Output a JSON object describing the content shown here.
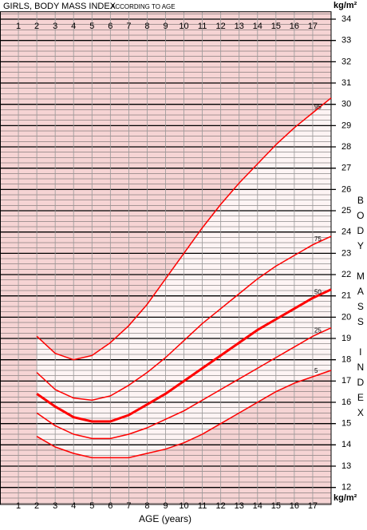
{
  "chart_data": {
    "type": "line",
    "title": "GIRLS, BODY MASS INDEX",
    "subtitle": "ACCORDING TO AGE",
    "x_label": "AGE (years)",
    "y_label": "BODY MASS INDEX",
    "y_unit": "kg/m²",
    "x": [
      2,
      3,
      4,
      5,
      6,
      7,
      8,
      9,
      10,
      11,
      12,
      13,
      14,
      15,
      16,
      17,
      18
    ],
    "series": [
      {
        "name": "95",
        "color": "#ff0000",
        "width": 1.5,
        "values": [
          19.1,
          18.3,
          18.0,
          18.2,
          18.8,
          19.6,
          20.6,
          21.8,
          23.0,
          24.2,
          25.3,
          26.3,
          27.2,
          28.1,
          28.9,
          29.6,
          30.3
        ]
      },
      {
        "name": "75",
        "color": "#ff0000",
        "width": 1.5,
        "values": [
          17.4,
          16.6,
          16.2,
          16.1,
          16.3,
          16.8,
          17.4,
          18.1,
          18.9,
          19.7,
          20.4,
          21.1,
          21.8,
          22.4,
          22.9,
          23.4,
          23.8
        ]
      },
      {
        "name": "50",
        "color": "#ff0000",
        "width": 3,
        "values": [
          16.4,
          15.8,
          15.3,
          15.1,
          15.1,
          15.4,
          15.9,
          16.4,
          17.0,
          17.6,
          18.2,
          18.8,
          19.4,
          19.9,
          20.4,
          20.9,
          21.3
        ]
      },
      {
        "name": "25",
        "color": "#ff0000",
        "width": 1.5,
        "values": [
          15.5,
          14.9,
          14.5,
          14.3,
          14.3,
          14.5,
          14.8,
          15.2,
          15.6,
          16.1,
          16.6,
          17.1,
          17.6,
          18.1,
          18.6,
          19.1,
          19.5
        ]
      },
      {
        "name": "5",
        "color": "#ff0000",
        "width": 1.5,
        "values": [
          14.4,
          13.9,
          13.6,
          13.4,
          13.4,
          13.4,
          13.6,
          13.8,
          14.1,
          14.5,
          15.0,
          15.5,
          16.0,
          16.5,
          16.9,
          17.2,
          17.5
        ]
      }
    ],
    "xlim": [
      0,
      18
    ],
    "xticks": [
      1,
      2,
      3,
      4,
      5,
      6,
      7,
      8,
      9,
      10,
      11,
      12,
      13,
      14,
      15,
      16,
      17
    ],
    "ylim": [
      11.2,
      34.35
    ],
    "yticks": [
      12,
      13,
      14,
      15,
      16,
      17,
      18,
      19,
      20,
      21,
      22,
      23,
      24,
      25,
      26,
      27,
      28,
      29,
      30,
      31,
      32,
      33,
      34
    ],
    "grid": true,
    "background": "#f6d4d4"
  }
}
